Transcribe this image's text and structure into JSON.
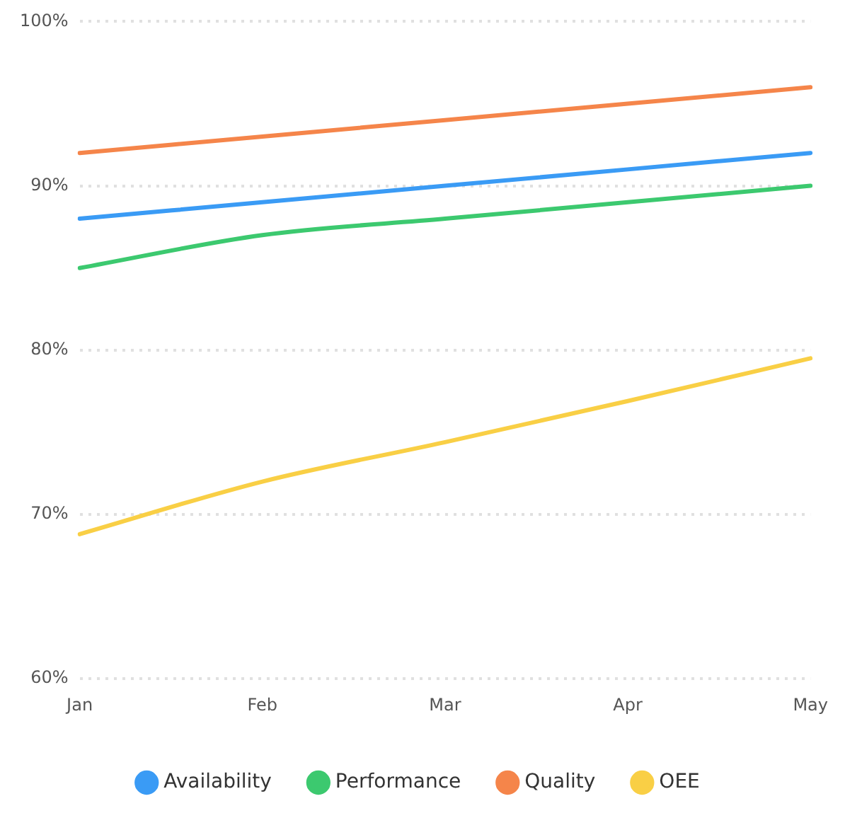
{
  "chart_data": {
    "type": "line",
    "categories": [
      "Jan",
      "Feb",
      "Mar",
      "Apr",
      "May"
    ],
    "series": [
      {
        "name": "Availability",
        "color": "#3a9bf5",
        "values": [
          88,
          89,
          90,
          91,
          92
        ]
      },
      {
        "name": "Performance",
        "color": "#3cc96f",
        "values": [
          85,
          87,
          88,
          89,
          90
        ]
      },
      {
        "name": "Quality",
        "color": "#f5854a",
        "values": [
          92,
          93,
          94,
          95,
          96
        ]
      },
      {
        "name": "OEE",
        "color": "#f9cf45",
        "values": [
          68.8,
          72.0,
          74.4,
          76.9,
          79.5
        ]
      }
    ],
    "ylim": [
      60,
      100
    ],
    "yticks": [
      {
        "value": 60,
        "label": "60%"
      },
      {
        "value": 70,
        "label": "70%"
      },
      {
        "value": 80,
        "label": "80%"
      },
      {
        "value": 90,
        "label": "90%"
      },
      {
        "value": 100,
        "label": "100%"
      }
    ],
    "grid": "y",
    "legend": "bottom",
    "marker": "none",
    "line_style": "solid"
  }
}
